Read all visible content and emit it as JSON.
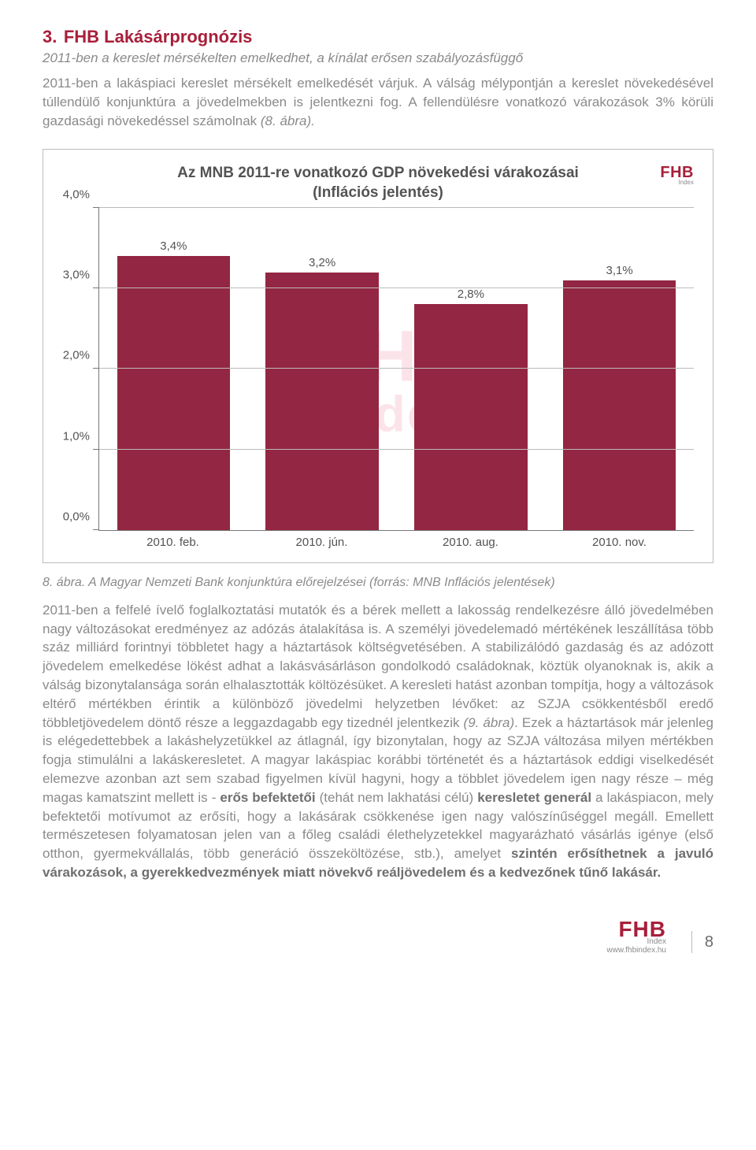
{
  "heading": {
    "num": "3.",
    "text": "FHB Lakásárprognózis"
  },
  "subtitle": "2011-ben a kereslet mérsékelten emelkedhet, a kínálat erősen szabályozásfüggő",
  "intro": {
    "p1": "2011-ben a lakáspiaci kereslet mérsékelt emelkedését várjuk. A válság mélypontján a kereslet növekedésével túllendülő konjunktúra a jövedelmekben is jelentkezni fog. A fellendülésre vonatkozó várakozások 3% körüli gazdasági növekedéssel számolnak ",
    "ref": "(8. ábra).",
    "tail": ""
  },
  "chart": {
    "type": "bar",
    "title1": "Az MNB 2011-re vonatkozó GDP növekedési várakozásai",
    "title2": "(Inflációs jelentés)",
    "logo_main": "FHB",
    "logo_sub": "Index",
    "watermark1": "FHB",
    "watermark2": "index",
    "bar_color": "#932642",
    "background_color": "#ffffff",
    "grid_color": "#bbbbbb",
    "title_color": "#535353",
    "title_fontsize": 19,
    "label_fontsize": 15,
    "ylim": [
      0.0,
      4.0
    ],
    "ytick_step": 1.0,
    "ylabels": [
      "0,0%",
      "1,0%",
      "2,0%",
      "3,0%",
      "4,0%"
    ],
    "series": [
      {
        "category": "2010. feb.",
        "label": "3,4%",
        "value": 3.4
      },
      {
        "category": "2010. jún.",
        "label": "3,2%",
        "value": 3.2
      },
      {
        "category": "2010. aug.",
        "label": "2,8%",
        "value": 2.8
      },
      {
        "category": "2010. nov.",
        "label": "3,1%",
        "value": 3.1
      }
    ]
  },
  "caption": "8. ábra. A Magyar Nemzeti Bank konjunktúra előrejelzései (forrás: MNB Inflációs jelentések)",
  "body": {
    "s1": "2011-ben a felfelé ívelő foglalkoztatási mutatók és a bérek mellett a lakosság rendelkezésre álló jövedelmében nagy változásokat eredményez az adózás átalakítása is. A személyi jövedelemadó mértékének leszállítása több száz milliárd forintnyi többletet hagy a háztartások költségvetésében. A stabilizálódó gazdaság és az adózott jövedelem emelkedése lökést adhat a lakásvásárláson gondolkodó családoknak, köztük olyanoknak is, akik a válság bizonytalansága során elhalasztották költözésüket. A keresleti hatást azonban tompítja, hogy a változások eltérő mértékben érintik a különböző jövedelmi helyzetben lévőket: az SZJA csökkentésből eredő többletjövedelem döntő része a leggazdagabb egy tizednél jelentkezik ",
    "s1ref": "(9. ábra)",
    "s2": ". Ezek a háztartások már jelenleg is elégedettebbek a lakáshelyzetükkel az átlagnál, így bizonytalan, hogy az SZJA változása milyen mértékben fogja stimulálni a lakáskeresletet. A magyar lakáspiac korábbi történetét és a háztartások eddigi viselkedését elemezve azonban azt sem szabad figyelmen kívül hagyni, hogy a többlet jövedelem igen nagy része – még magas kamatszint mellett is - ",
    "b1": "erős befektetői",
    "s3": " (tehát nem lakhatási célú)  ",
    "b2": "keresletet generál",
    "s4": " a lakáspiacon, mely befektetői motívumot az erősíti, hogy a lakásárak csökkenése igen nagy valószínűséggel megáll.  Emellett természetesen folyamatosan jelen van a főleg családi élethelyzetekkel magyarázható vásárlás igénye (első otthon, gyermekvállalás, több generáció összeköltözése, stb.), amelyet ",
    "b3": "szintén erősíthetnek a javuló várakozások, a gyerekkedvezmények miatt növekvő reáljövedelem és a kedvezőnek tűnő lakásár."
  },
  "footer": {
    "logo_main": "FHB",
    "logo_sub": "Index",
    "url": "www.fhbindex.hu",
    "page_no": "8"
  }
}
